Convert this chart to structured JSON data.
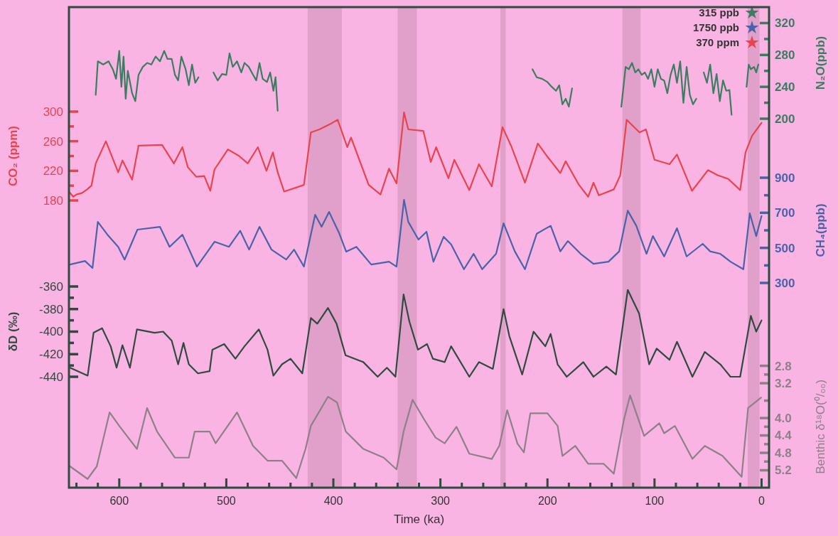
{
  "chart_data": [
    {
      "type": "line",
      "y2label": "N₂O(ppb)",
      "xlim": [
        647,
        -7
      ],
      "y2lim": [
        200,
        340
      ],
      "tick_labels": "y2",
      "annotations": [
        "315 ppb"
      ],
      "y2ticks": [
        320,
        {
          "value": 300,
          "label": null
        },
        280,
        {
          "value": 260,
          "label": null
        },
        240,
        {
          "value": 220,
          "label": null
        },
        200
      ],
      "series": [
        {
          "color": "#3b7d5f",
          "axis": "y2",
          "x": [
            622,
            620,
            615,
            610,
            606,
            603,
            600,
            598,
            596,
            594,
            592,
            588,
            585,
            582,
            578,
            574,
            570,
            566,
            562,
            558,
            555,
            551,
            548,
            545,
            542,
            538,
            535,
            532,
            529,
            526,
            519,
            512,
            508,
            504,
            500,
            497,
            494,
            490,
            486,
            483,
            479,
            475,
            472,
            469,
            466,
            462,
            459,
            456,
            454,
            452,
            330,
            214,
            210,
            205,
            200,
            196,
            192,
            189,
            186,
            183,
            180,
            177,
            155,
            131,
            129,
            127,
            124,
            121,
            118,
            115,
            112,
            109,
            106,
            103,
            100,
            97,
            94,
            91,
            88,
            85,
            82,
            79,
            76,
            73,
            70,
            67,
            64,
            61,
            57,
            54,
            51,
            48,
            45,
            42,
            39,
            36,
            33,
            30,
            28,
            20,
            14,
            12,
            10,
            7,
            5,
            3
          ],
          "values": [
            230,
            272,
            268,
            272,
            262,
            250,
            285,
            240,
            278,
            225,
            260,
            232,
            222,
            255,
            265,
            270,
            268,
            278,
            272,
            285,
            275,
            275,
            255,
            248,
            278,
            262,
            242,
            268,
            245,
            252,
            null,
            258,
            248,
            256,
            255,
            282,
            265,
            272,
            258,
            270,
            265,
            255,
            248,
            270,
            250,
            246,
            258,
            235,
            252,
            210,
            null,
            262,
            252,
            250,
            246,
            240,
            235,
            242,
            218,
            225,
            215,
            238,
            null,
            215,
            240,
            265,
            262,
            270,
            258,
            262,
            255,
            258,
            250,
            262,
            240,
            262,
            250,
            248,
            232,
            255,
            268,
            245,
            272,
            220,
            265,
            230,
            218,
            225,
            null,
            258,
            245,
            268,
            232,
            256,
            222,
            248,
            235,
            236,
            205,
            null,
            240,
            268,
            262,
            265,
            258,
            268
          ]
        }
      ]
    },
    {
      "type": "line",
      "ylabel": "CO₂ (ppm)",
      "xlim": [
        647,
        -7
      ],
      "ylim": [
        180,
        300
      ],
      "tick_labels": "y",
      "annotations": [
        "370 ppm"
      ],
      "yticks": [
        300,
        {
          "value": 280,
          "label": null
        },
        260,
        {
          "value": 240,
          "label": null
        },
        220,
        {
          "value": 200,
          "label": null
        },
        180
      ],
      "series": [
        {
          "color": "#e9444e",
          "x": [
            647,
            643,
            640,
            635,
            630,
            626,
            622,
            612.5,
            601,
            597,
            588,
            582,
            560,
            549,
            541,
            536,
            528,
            520.6,
            515,
            511,
            498.5,
            488,
            480,
            470.5,
            462.5,
            456.5,
            452,
            446,
            427.5,
            421,
            413,
            402,
            396,
            387,
            383.5,
            367,
            356,
            348,
            341,
            334,
            330,
            316,
            309,
            304,
            292.5,
            287,
            273,
            264,
            252,
            242,
            234,
            221,
            209,
            200,
            188,
            183,
            171,
            162,
            157,
            152,
            138,
            132,
            126,
            114,
            108,
            100,
            86,
            79,
            65,
            50,
            41,
            31,
            20,
            15,
            9,
            0
          ],
          "values": [
            192,
            185,
            188,
            190,
            195,
            200,
            230,
            260,
            218,
            234,
            208,
            254,
            255,
            230,
            252,
            225,
            212,
            213,
            193,
            222,
            249,
            240,
            230,
            252,
            220,
            245,
            218,
            192,
            201,
            272,
            276,
            284,
            289,
            252,
            265,
            201,
            188,
            223,
            203,
            299,
            276,
            274,
            232,
            252,
            210,
            235,
            194,
            229,
            199,
            279,
            254,
            204,
            257,
            239,
            217,
            233,
            202,
            185,
            204,
            187,
            195,
            214,
            289,
            272,
            276,
            235,
            229,
            242,
            193,
            221,
            214,
            209,
            194,
            245,
            267,
            285
          ]
        }
      ]
    },
    {
      "type": "line",
      "y2label": "CH₄(ppb)",
      "xlim": [
        647,
        -7
      ],
      "y2lim": [
        300,
        900
      ],
      "tick_labels": "y2",
      "annotations": [
        "1750 ppb"
      ],
      "y2ticks": [
        900,
        {
          "value": 800,
          "label": null
        },
        700,
        {
          "value": 600,
          "label": null
        },
        500,
        {
          "value": 400,
          "label": null
        },
        300
      ],
      "series": [
        {
          "color": "#4a62a8",
          "axis": "y2",
          "x": [
            646,
            632,
            625,
            620,
            611,
            601,
            595,
            583,
            562,
            553,
            541,
            527.5,
            511,
            497.5,
            487,
            478.7,
            469,
            457.8,
            444,
            436.7,
            427.5,
            417,
            411,
            404,
            394.8,
            388,
            378.5,
            364.6,
            348,
            341,
            334,
            330,
            320.5,
            313,
            306.5,
            297,
            290,
            278,
            269,
            261,
            248,
            241,
            230.5,
            221,
            210,
            197,
            188,
            181,
            169,
            157,
            143,
            133,
            125,
            117,
            107.5,
            101.5,
            91,
            79,
            70,
            55,
            48,
            38.5,
            29,
            17,
            11,
            5,
            0
          ],
          "values": [
            405,
            425,
            385,
            648,
            575,
            506,
            433,
            604,
            620,
            506,
            575,
            393,
            535,
            506,
            597,
            490,
            620,
            490,
            433,
            490,
            393,
            689,
            620,
            705,
            587,
            478,
            506,
            405,
            421,
            393,
            774,
            648,
            547,
            592,
            421,
            563,
            520,
            378,
            466,
            378,
            466,
            640,
            480,
            378,
            581,
            626,
            480,
            539,
            466,
            409,
            421,
            480,
            712,
            626,
            466,
            567,
            451,
            612,
            451,
            523,
            480,
            466,
            421,
            378,
            697,
            567,
            682
          ]
        }
      ]
    },
    {
      "type": "line",
      "ylabel": "δD (‰)",
      "xlim": [
        647,
        -7
      ],
      "ylim": [
        -440,
        -360
      ],
      "tick_labels": "y",
      "yticks": [
        -360,
        {
          "value": -370,
          "label": null
        },
        -380,
        {
          "value": -390,
          "label": null
        },
        -400,
        {
          "value": -410,
          "label": null
        },
        -420,
        {
          "value": -430,
          "label": null
        },
        -440
      ],
      "series": [
        {
          "color": "#2f4a3e",
          "x": [
            646,
            629.5,
            624,
            616,
            608,
            602.5,
            597,
            590,
            583.5,
            567,
            559,
            551,
            545,
            540,
            535,
            526.5,
            515.6,
            513,
            502,
            491.5,
            483,
            469.6,
            461.5,
            456,
            448,
            440,
            429,
            421,
            415,
            405,
            397,
            388.6,
            372,
            358.6,
            350,
            342,
            334.4,
            329,
            321,
            312.5,
            307,
            296,
            290,
            273,
            264,
            251,
            241,
            235.6,
            223.6,
            213,
            202,
            197,
            190.5,
            182,
            166.5,
            157,
            145,
            136,
            125,
            114.4,
            105,
            98,
            86,
            79,
            64.6,
            53,
            38.5,
            29,
            20,
            10,
            5,
            0
          ],
          "values": [
            -432,
            -439,
            -401,
            -397,
            -413,
            -432,
            -412,
            -432,
            -398,
            -401,
            -400,
            -408,
            -429,
            -410,
            -429,
            -437,
            -435,
            -416,
            -411,
            -424,
            -413,
            -398,
            -416,
            -439,
            -429,
            -424,
            -437,
            -388,
            -393,
            -379,
            -393,
            -421,
            -427,
            -440,
            -432,
            -440,
            -367,
            -391,
            -416,
            -411,
            -424,
            -427,
            -413,
            -440,
            -427,
            -433,
            -380,
            -404,
            -438,
            -400,
            -413,
            -402,
            -429,
            -440,
            -427,
            -440,
            -431,
            -438,
            -363,
            -384,
            -429,
            -415,
            -425,
            -409,
            -440,
            -418,
            -429,
            -440,
            -440,
            -386,
            -400,
            -390
          ]
        }
      ]
    },
    {
      "type": "line",
      "xlabel": "Time (ka)",
      "y2label": "Benthic δ¹⁸O(⁰/₀₀)",
      "xlim": [
        647,
        -7
      ],
      "y2lim": [
        5.6,
        2.8
      ],
      "xticks": [
        {
          "value": 640,
          "label": null
        },
        {
          "value": 620,
          "label": null
        },
        600,
        {
          "value": 580,
          "label": null
        },
        {
          "value": 560,
          "label": null
        },
        {
          "value": 540,
          "label": null
        },
        {
          "value": 520,
          "label": null
        },
        500,
        {
          "value": 480,
          "label": null
        },
        {
          "value": 460,
          "label": null
        },
        {
          "value": 440,
          "label": null
        },
        {
          "value": 420,
          "label": null
        },
        400,
        {
          "value": 380,
          "label": null
        },
        {
          "value": 360,
          "label": null
        },
        {
          "value": 340,
          "label": null
        },
        {
          "value": 320,
          "label": null
        },
        300,
        {
          "value": 280,
          "label": null
        },
        {
          "value": 260,
          "label": null
        },
        {
          "value": 240,
          "label": null
        },
        {
          "value": 220,
          "label": null
        },
        200,
        {
          "value": 180,
          "label": null
        },
        {
          "value": 160,
          "label": null
        },
        {
          "value": 140,
          "label": null
        },
        {
          "value": 120,
          "label": null
        },
        100,
        {
          "value": 80,
          "label": null
        },
        {
          "value": 60,
          "label": null
        },
        {
          "value": 40,
          "label": null
        },
        {
          "value": 20,
          "label": null
        },
        0
      ],
      "y2ticks": [
        2.8,
        {
          "value": 3.0,
          "label": null
        },
        3.2,
        {
          "value": 3.6,
          "label": null
        },
        {
          "value": 4.0,
          "label": "4.0"
        },
        {
          "value": 4.2,
          "label": null
        },
        4.4,
        {
          "value": 4.6,
          "label": null
        },
        4.8,
        {
          "value": 5.0,
          "label": null
        },
        5.2
      ],
      "bands": [
        {
          "axis": "x",
          "from": 424,
          "to": 392,
          "color": "#e0a0ca"
        },
        {
          "axis": "x",
          "from": 340,
          "to": 322,
          "color": "#e0a0ca"
        },
        {
          "axis": "x",
          "from": 244,
          "to": 239,
          "color": "#e0a0ca"
        },
        {
          "axis": "x",
          "from": 130,
          "to": 113,
          "color": "#e0a0ca"
        },
        {
          "axis": "x",
          "from": 13,
          "to": 2,
          "color": "#e0a0ca"
        }
      ],
      "series": [
        {
          "color": "#8e8088",
          "axis": "y2",
          "x": [
            646,
            629.6,
            621,
            609,
            600,
            583.5,
            574,
            564.7,
            548,
            535,
            529.5,
            515.6,
            510,
            496.7,
            490,
            475,
            461.5,
            448,
            434.6,
            426,
            421,
            405,
            396.6,
            388.4,
            372,
            353,
            341,
            334.4,
            326,
            315,
            304.5,
            296,
            285,
            273,
            252,
            245,
            237.6,
            228,
            222,
            216,
            200,
            190.5,
            186,
            174,
            162,
            147.6,
            138,
            128.7,
            122.8,
            109.7,
            95.5,
            91,
            81,
            64.6,
            53,
            36.5,
            18.6,
            12.6,
            0.5
          ],
          "values": [
            5.11,
            5.4,
            5.11,
            3.87,
            4.18,
            4.71,
            3.77,
            4.31,
            4.91,
            4.91,
            4.31,
            4.31,
            4.58,
            4.11,
            3.87,
            4.64,
            4.98,
            4.98,
            5.38,
            4.71,
            4.18,
            3.51,
            3.64,
            4.31,
            4.71,
            4.91,
            5.18,
            4.31,
            3.58,
            4.04,
            4.45,
            4.58,
            4.2,
            4.82,
            4.94,
            4.64,
            3.82,
            4.59,
            4.79,
            3.89,
            3.89,
            4.18,
            4.87,
            4.64,
            5.05,
            5.05,
            5.28,
            4.05,
            3.48,
            4.41,
            4.12,
            4.35,
            4.18,
            4.94,
            4.64,
            4.87,
            5.35,
            3.77,
            3.53
          ]
        }
      ]
    }
  ]
}
